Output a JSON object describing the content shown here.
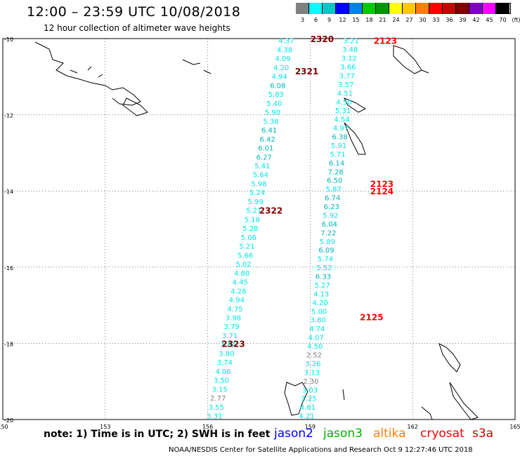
{
  "header": {
    "title": "12:00 – 23:59 UTC 10/08/2018",
    "subtitle": "12 hour collection of altimeter wave heights"
  },
  "scale": {
    "ticks": [
      "3",
      "6",
      "9",
      "12",
      "15",
      "18",
      "21",
      "24",
      "27",
      "30",
      "33",
      "36",
      "39",
      "42",
      "45",
      "70",
      "(ft)"
    ],
    "colors": [
      "#808080",
      "#00ffff",
      "#00c8c8",
      "#0000ff",
      "#0080ff",
      "#00c800",
      "#009600",
      "#ffff00",
      "#ffc800",
      "#ff8000",
      "#ff0000",
      "#c80000",
      "#800000",
      "#8000c0",
      "#ff00ff",
      "#000000"
    ]
  },
  "chart_data": {
    "type": "scatter",
    "xlim": [
      150,
      165
    ],
    "ylim": [
      -20,
      -10
    ],
    "x_ticks": [
      "150",
      "153",
      "156",
      "159",
      "162",
      "165"
    ],
    "y_ticks": [
      "-10",
      "-12",
      "-14",
      "-16",
      "-18",
      "-20"
    ],
    "grid": true,
    "track_west": {
      "values": [
        "4.37",
        "4.38",
        "4.09",
        "4.20",
        "4.94",
        "6.08",
        "5.83",
        "5.40",
        "5.90",
        "5.38",
        "6.41",
        "6.42",
        "6.01",
        "6.27",
        "5.41",
        "5.64",
        "5.98",
        "5.24",
        "5.99",
        "5.21",
        "5.18",
        "5.28",
        "5.06",
        "5.21",
        "5.66",
        "5.02",
        "4.80",
        "4.45",
        "4.28",
        "4.94",
        "4.75",
        "3.98",
        "3.79",
        "3.71",
        "3.82",
        "3.80",
        "3.74",
        "4.06",
        "3.50",
        "3.15",
        "2.77",
        "3.55",
        "3.31"
      ],
      "lon_start": 158.3,
      "lat_start": -10.05,
      "lon_end": 156.2,
      "lat_end": -19.9
    },
    "track_east": {
      "values": [
        "3.21",
        "3.48",
        "3.12",
        "3.66",
        "3.77",
        "3.57",
        "4.51",
        "4.50",
        "5.31",
        "4.54",
        "4.97",
        "6.38",
        "5.91",
        "5.71",
        "6.14",
        "7.28",
        "6.50",
        "5.87",
        "6.74",
        "6.23",
        "5.92",
        "6.04",
        "7.22",
        "5.89",
        "6.09",
        "5.74",
        "5.52",
        "6.33",
        "5.27",
        "4.13",
        "4.20",
        "5.00",
        "3.80",
        "4.74",
        "4.07",
        "4.50",
        "2.52",
        "3.26",
        "3.13",
        "2.30",
        "3.03",
        "3.25",
        "4.61",
        "4.21"
      ],
      "lon_start": 160.2,
      "lat_start": -10.05,
      "lon_end": 158.9,
      "lat_end": -19.9
    },
    "time_labels": [
      {
        "text": "2320",
        "lon": 159.35,
        "lat": -10.0,
        "track": "west"
      },
      {
        "text": "2321",
        "lon": 158.9,
        "lat": -10.85,
        "track": "west"
      },
      {
        "text": "2322",
        "lon": 157.85,
        "lat": -14.5,
        "track": "west"
      },
      {
        "text": "2323",
        "lon": 156.75,
        "lat": -18.0,
        "track": "west"
      },
      {
        "text": "2123",
        "lon": 161.2,
        "lat": -10.05,
        "track": "east"
      },
      {
        "text": "2123",
        "lon": 161.1,
        "lat": -13.8,
        "track": "east"
      },
      {
        "text": "2124",
        "lon": 161.1,
        "lat": -14.0,
        "track": "east"
      },
      {
        "text": "2125",
        "lon": 160.8,
        "lat": -17.3,
        "track": "east"
      }
    ]
  },
  "note": "note: 1) Time is in UTC; 2) SWH is in feet",
  "satellites": [
    {
      "name": "jason2",
      "color": "#0000ff"
    },
    {
      "name": "jason3",
      "color": "#00b000"
    },
    {
      "name": "altika",
      "color": "#ff8000"
    },
    {
      "name": "cryosat",
      "color": "#ff0000"
    },
    {
      "name": "s3a",
      "color": "#c80000"
    }
  ],
  "footer": "NOAA/NESDIS Center for Satellite Applications and Research    Oct  9 12:27:46 UTC 2018"
}
